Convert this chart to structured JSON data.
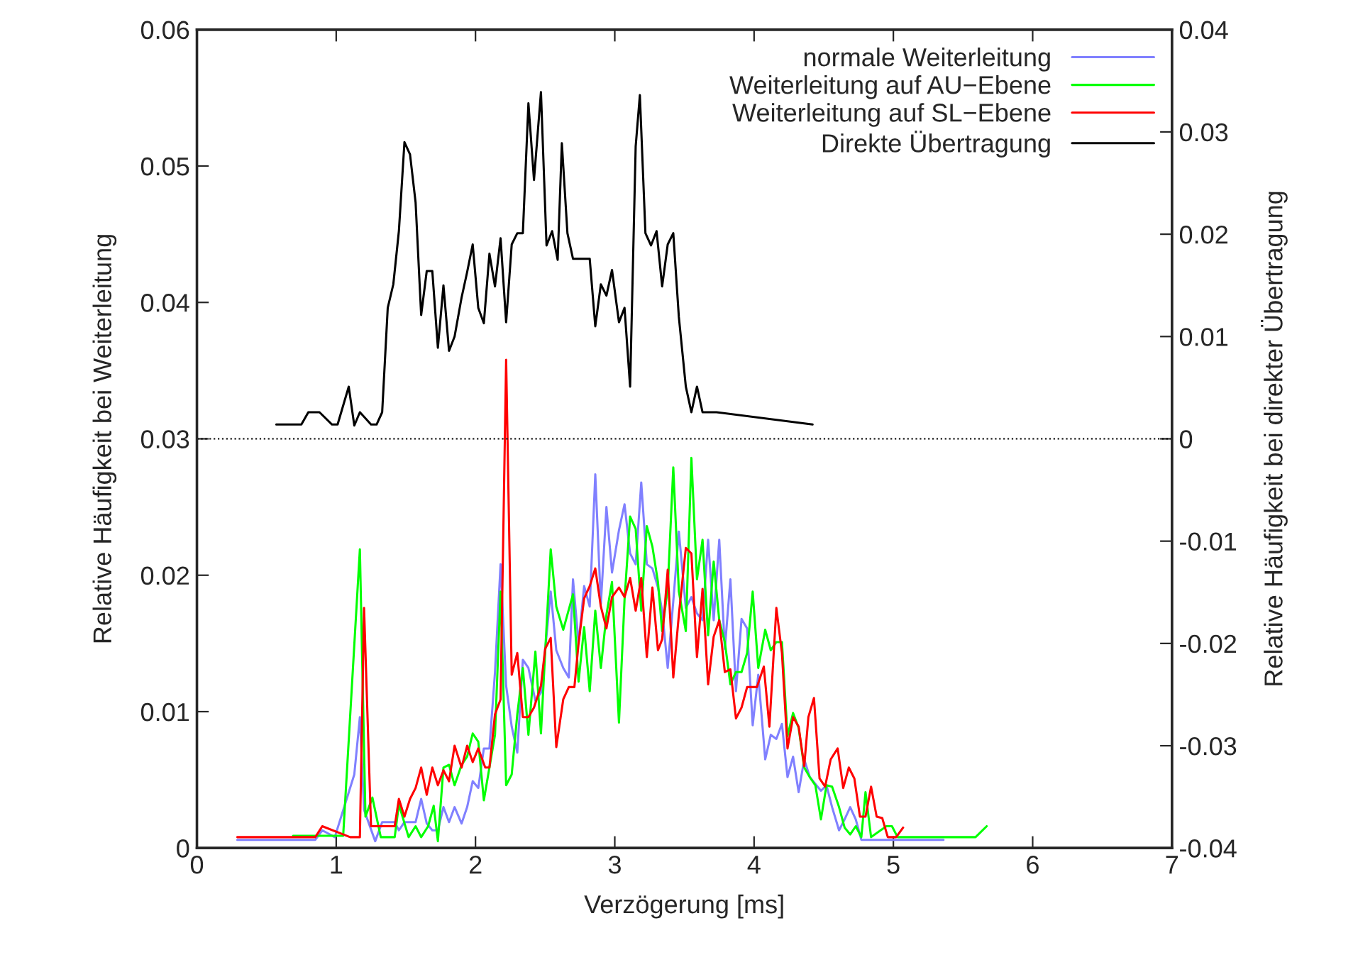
{
  "chart_data": {
    "type": "line",
    "xlabel": "Verzögerung [ms]",
    "ylabel": "Relative Häufigkeit bei Weiterleitung",
    "y2label": "Relative Häufigkeit bei direkter Übertragung",
    "xlim": [
      0,
      7
    ],
    "xticks": [
      0,
      1,
      2,
      3,
      4,
      5,
      6,
      7
    ],
    "ylim": [
      0,
      0.06
    ],
    "yticks": [
      0,
      0.01,
      0.02,
      0.03,
      0.04,
      0.05,
      0.06
    ],
    "y2lim": [
      -0.04,
      0.04
    ],
    "y2ticks": [
      -0.04,
      -0.03,
      -0.02,
      -0.01,
      0,
      0.01,
      0.02,
      0.03,
      0.04
    ],
    "legend": "top right",
    "grid": false,
    "ref_lines": [
      {
        "axis": "y2",
        "value": 0,
        "color": "#000000",
        "line_style": "dotted"
      }
    ],
    "series": [
      {
        "name": "normale Weiterleitung",
        "color": "#8080ff",
        "x": [
          0.29,
          0.85,
          0.9,
          0.99,
          1.13,
          1.17,
          1.2,
          1.28,
          1.33,
          1.42,
          1.45,
          1.49,
          1.57,
          1.61,
          1.65,
          1.69,
          1.73,
          1.77,
          1.81,
          1.85,
          1.9,
          1.94,
          1.98,
          2.02,
          2.06,
          2.1,
          2.14,
          2.18,
          2.22,
          2.26,
          2.3,
          2.34,
          2.38,
          2.43,
          2.47,
          2.5,
          2.54,
          2.58,
          2.63,
          2.67,
          2.7,
          2.74,
          2.78,
          2.82,
          2.86,
          2.9,
          2.94,
          2.98,
          3.03,
          3.07,
          3.11,
          3.15,
          3.19,
          3.23,
          3.27,
          3.31,
          3.34,
          3.38,
          3.42,
          3.46,
          3.51,
          3.55,
          3.59,
          3.63,
          3.67,
          3.71,
          3.75,
          3.79,
          3.83,
          3.87,
          3.91,
          3.95,
          3.99,
          4.03,
          4.08,
          4.12,
          4.16,
          4.2,
          4.24,
          4.28,
          4.32,
          4.36,
          4.4,
          4.44,
          4.48,
          4.52,
          4.56,
          4.61,
          4.65,
          4.69,
          4.73,
          4.77,
          5.36
        ],
        "values": [
          0.0006,
          0.0006,
          0.0013,
          0.0008,
          0.0054,
          0.0096,
          0.0028,
          0.0005,
          0.0019,
          0.0019,
          0.0013,
          0.0019,
          0.0019,
          0.0036,
          0.0018,
          0.0013,
          0.0013,
          0.003,
          0.0019,
          0.003,
          0.0018,
          0.003,
          0.0049,
          0.0044,
          0.0073,
          0.0073,
          0.0129,
          0.0208,
          0.0119,
          0.0089,
          0.007,
          0.0138,
          0.0132,
          0.0108,
          0.0114,
          0.0145,
          0.0188,
          0.0145,
          0.0132,
          0.0125,
          0.0197,
          0.015,
          0.0192,
          0.0177,
          0.0274,
          0.0179,
          0.025,
          0.0202,
          0.0233,
          0.0252,
          0.0216,
          0.0208,
          0.0268,
          0.0208,
          0.0205,
          0.0191,
          0.0174,
          0.0132,
          0.0181,
          0.0232,
          0.0176,
          0.0184,
          0.0172,
          0.0167,
          0.0226,
          0.0167,
          0.0226,
          0.0146,
          0.0197,
          0.0115,
          0.0168,
          0.0161,
          0.009,
          0.0127,
          0.0065,
          0.0083,
          0.008,
          0.0091,
          0.0052,
          0.0067,
          0.0041,
          0.0065,
          0.0052,
          0.0047,
          0.0042,
          0.0046,
          0.003,
          0.0013,
          0.0021,
          0.003,
          0.0021,
          0.0006,
          0.0006
        ]
      },
      {
        "name": "Weiterleitung auf AU−Ebene",
        "color": "#00ff00",
        "x": [
          0.69,
          1.05,
          1.17,
          1.21,
          1.26,
          1.32,
          1.42,
          1.45,
          1.52,
          1.57,
          1.61,
          1.66,
          1.7,
          1.73,
          1.77,
          1.81,
          1.85,
          1.9,
          1.94,
          1.98,
          2.02,
          2.06,
          2.1,
          2.14,
          2.18,
          2.22,
          2.26,
          2.3,
          2.34,
          2.38,
          2.43,
          2.47,
          2.5,
          2.54,
          2.58,
          2.63,
          2.7,
          2.74,
          2.78,
          2.82,
          2.86,
          2.9,
          2.94,
          2.98,
          3.03,
          3.07,
          3.11,
          3.15,
          3.19,
          3.23,
          3.27,
          3.31,
          3.34,
          3.38,
          3.42,
          3.46,
          3.51,
          3.55,
          3.59,
          3.63,
          3.67,
          3.71,
          3.75,
          3.79,
          3.83,
          3.87,
          3.91,
          3.95,
          3.99,
          4.03,
          4.08,
          4.12,
          4.16,
          4.2,
          4.24,
          4.28,
          4.32,
          4.36,
          4.4,
          4.44,
          4.48,
          4.52,
          4.56,
          4.61,
          4.65,
          4.69,
          4.73,
          4.77,
          4.8,
          4.84,
          4.95,
          4.99,
          5.03,
          5.59,
          5.67
        ],
        "values": [
          0.0009,
          0.0009,
          0.0219,
          0.0023,
          0.0037,
          0.0008,
          0.0008,
          0.0032,
          0.0008,
          0.0016,
          0.0008,
          0.0016,
          0.0031,
          0.0005,
          0.0059,
          0.0061,
          0.0046,
          0.0061,
          0.0067,
          0.0084,
          0.0078,
          0.0035,
          0.0059,
          0.0083,
          0.0188,
          0.0046,
          0.0054,
          0.0098,
          0.0132,
          0.0083,
          0.0144,
          0.0084,
          0.0143,
          0.0219,
          0.0177,
          0.016,
          0.0186,
          0.0122,
          0.0162,
          0.0115,
          0.0174,
          0.0132,
          0.0171,
          0.0195,
          0.0092,
          0.0182,
          0.0243,
          0.0234,
          0.0174,
          0.0236,
          0.0221,
          0.0195,
          0.0159,
          0.019,
          0.0279,
          0.0188,
          0.0159,
          0.0286,
          0.0197,
          0.0226,
          0.0156,
          0.021,
          0.0167,
          0.0151,
          0.012,
          0.0129,
          0.0129,
          0.0143,
          0.0188,
          0.0132,
          0.016,
          0.0145,
          0.0151,
          0.0151,
          0.0082,
          0.0099,
          0.0088,
          0.0059,
          0.0052,
          0.0046,
          0.0021,
          0.0046,
          0.0045,
          0.003,
          0.0015,
          0.001,
          0.0016,
          0.0008,
          0.0041,
          0.0008,
          0.0016,
          0.0016,
          0.0008,
          0.0008,
          0.0016
        ]
      },
      {
        "name": "Weiterleitung auf SL−Ebene",
        "color": "#ff0000",
        "x": [
          0.29,
          0.85,
          0.9,
          1.1,
          1.17,
          1.2,
          1.25,
          1.42,
          1.45,
          1.49,
          1.53,
          1.57,
          1.61,
          1.65,
          1.69,
          1.73,
          1.77,
          1.81,
          1.85,
          1.9,
          1.94,
          1.98,
          2.02,
          2.07,
          2.1,
          2.14,
          2.18,
          2.22,
          2.26,
          2.3,
          2.34,
          2.38,
          2.42,
          2.47,
          2.5,
          2.54,
          2.58,
          2.63,
          2.67,
          2.71,
          2.74,
          2.78,
          2.82,
          2.86,
          2.9,
          2.94,
          2.98,
          3.03,
          3.07,
          3.11,
          3.15,
          3.19,
          3.23,
          3.27,
          3.31,
          3.34,
          3.38,
          3.42,
          3.46,
          3.51,
          3.55,
          3.59,
          3.63,
          3.67,
          3.71,
          3.75,
          3.79,
          3.83,
          3.87,
          3.91,
          3.95,
          4.02,
          4.07,
          4.11,
          4.16,
          4.2,
          4.24,
          4.28,
          4.32,
          4.36,
          4.39,
          4.43,
          4.47,
          4.51,
          4.55,
          4.6,
          4.64,
          4.68,
          4.72,
          4.76,
          4.8,
          4.84,
          4.88,
          4.92,
          4.96,
          5.02,
          5.07
        ],
        "values": [
          0.0008,
          0.0008,
          0.0016,
          0.0008,
          0.0008,
          0.0176,
          0.0016,
          0.0016,
          0.0036,
          0.0023,
          0.0036,
          0.0044,
          0.0059,
          0.0039,
          0.0059,
          0.0046,
          0.0057,
          0.0049,
          0.0075,
          0.0059,
          0.0075,
          0.0063,
          0.0073,
          0.0059,
          0.0059,
          0.0098,
          0.0109,
          0.0358,
          0.0127,
          0.0143,
          0.0096,
          0.0096,
          0.0103,
          0.0119,
          0.0146,
          0.0154,
          0.0074,
          0.0109,
          0.0118,
          0.0118,
          0.015,
          0.0183,
          0.0192,
          0.0205,
          0.0177,
          0.0161,
          0.0184,
          0.0191,
          0.0184,
          0.0198,
          0.0174,
          0.0198,
          0.014,
          0.0191,
          0.0145,
          0.0153,
          0.0204,
          0.0125,
          0.0171,
          0.022,
          0.0216,
          0.014,
          0.019,
          0.012,
          0.0155,
          0.0167,
          0.0129,
          0.0131,
          0.0095,
          0.0103,
          0.0118,
          0.0118,
          0.0133,
          0.0089,
          0.0176,
          0.0143,
          0.0073,
          0.0096,
          0.0089,
          0.006,
          0.0096,
          0.011,
          0.0051,
          0.0045,
          0.0065,
          0.0073,
          0.0044,
          0.0059,
          0.0051,
          0.0023,
          0.0023,
          0.0045,
          0.0023,
          0.0022,
          0.0008,
          0.0008,
          0.0015
        ]
      },
      {
        "name": "Direkte Übertragung",
        "color": "#000000",
        "axis": "y2",
        "x": [
          0.57,
          0.75,
          0.8,
          0.88,
          0.97,
          1.01,
          1.09,
          1.13,
          1.17,
          1.25,
          1.29,
          1.33,
          1.37,
          1.41,
          1.45,
          1.49,
          1.53,
          1.57,
          1.61,
          1.65,
          1.69,
          1.73,
          1.77,
          1.81,
          1.85,
          1.9,
          1.94,
          1.98,
          2.02,
          2.06,
          2.1,
          2.14,
          2.18,
          2.22,
          2.26,
          2.3,
          2.34,
          2.38,
          2.42,
          2.47,
          2.51,
          2.55,
          2.59,
          2.62,
          2.66,
          2.7,
          2.82,
          2.86,
          2.9,
          2.94,
          2.98,
          3.03,
          3.07,
          3.11,
          3.15,
          3.18,
          3.22,
          3.26,
          3.3,
          3.34,
          3.38,
          3.42,
          3.46,
          3.51,
          3.55,
          3.59,
          3.63,
          3.73,
          4.42
        ],
        "values": [
          0.0014,
          0.0014,
          0.0026,
          0.0026,
          0.0014,
          0.0014,
          0.0051,
          0.0013,
          0.0026,
          0.0014,
          0.0014,
          0.0026,
          0.0128,
          0.0151,
          0.0203,
          0.029,
          0.0278,
          0.0231,
          0.0121,
          0.0164,
          0.0164,
          0.0089,
          0.015,
          0.0086,
          0.01,
          0.0138,
          0.0163,
          0.019,
          0.0128,
          0.0113,
          0.0181,
          0.0149,
          0.0196,
          0.0114,
          0.019,
          0.0201,
          0.0201,
          0.0328,
          0.0253,
          0.0339,
          0.0189,
          0.0203,
          0.0175,
          0.0289,
          0.0201,
          0.0176,
          0.0176,
          0.011,
          0.0151,
          0.014,
          0.0165,
          0.0114,
          0.0128,
          0.0051,
          0.0286,
          0.0336,
          0.0201,
          0.0189,
          0.0203,
          0.0149,
          0.019,
          0.0201,
          0.0119,
          0.0051,
          0.0026,
          0.0051,
          0.0026,
          0.0026,
          0.0014
        ]
      }
    ]
  }
}
